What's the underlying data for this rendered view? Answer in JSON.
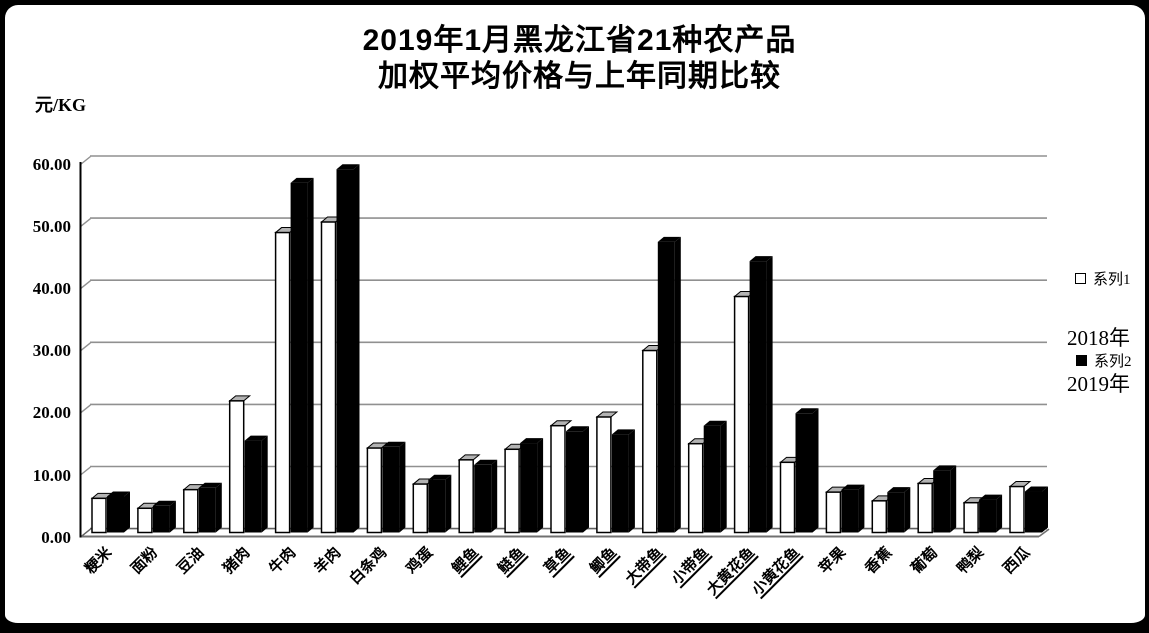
{
  "title": {
    "line1": "2019年1月黑龙江省21种农产品",
    "line2": "加权平均价格与上年同期比较"
  },
  "y_axis": {
    "unit_label": "元/KG",
    "tick_labels": [
      "60.00",
      "50.00",
      "40.00",
      "30.00",
      "20.00",
      "10.00",
      "0.00"
    ]
  },
  "legend": {
    "series1_label": "系列1",
    "series2_label": "系列2",
    "annotation_top": "2018年",
    "annotation_bottom": "2019年"
  },
  "colors": {
    "series1_fill": "#ffffff",
    "series2_fill": "#000000",
    "bar_top_face": "#b3b3b3",
    "gridline": "#909090",
    "axis": "#000000",
    "floor_line": "#707070"
  },
  "chart_data": {
    "type": "bar",
    "title": "2019年1月黑龙江省21种农产品加权平均价格与上年同期比较",
    "xlabel": "",
    "ylabel": "元/KG",
    "ylim": [
      0,
      60
    ],
    "ytick_step": 10,
    "grid": true,
    "legend_position": "right",
    "style": "3d-column",
    "categories": [
      "粳米",
      "面粉",
      "豆油",
      "猪肉",
      "牛肉",
      "羊肉",
      "白条鸡",
      "鸡蛋",
      "鲤鱼",
      "鲢鱼",
      "草鱼",
      "鲫鱼",
      "大带鱼",
      "小带鱼",
      "大黄花鱼",
      "小黄花鱼",
      "苹果",
      "香蕉",
      "葡萄",
      "鸭梨",
      "西瓜"
    ],
    "underlined_category_indexes": [
      8,
      9,
      10,
      11,
      12,
      13,
      14,
      15
    ],
    "series": [
      {
        "name": "系列1",
        "year_label": "2018年",
        "color": "#ffffff",
        "values": [
          5.5,
          3.9,
          6.9,
          21.2,
          48.3,
          50.0,
          13.6,
          7.8,
          11.7,
          13.4,
          17.2,
          18.6,
          29.3,
          14.3,
          38.0,
          11.3,
          6.5,
          5.1,
          7.9,
          4.8,
          7.4
        ]
      },
      {
        "name": "系列2",
        "year_label": "2019年",
        "color": "#000000",
        "values": [
          5.8,
          4.3,
          7.2,
          14.8,
          56.3,
          58.5,
          13.8,
          8.5,
          10.9,
          14.4,
          16.3,
          15.8,
          46.8,
          17.2,
          43.7,
          19.2,
          6.9,
          6.5,
          10.0,
          5.3,
          6.6
        ]
      }
    ]
  }
}
